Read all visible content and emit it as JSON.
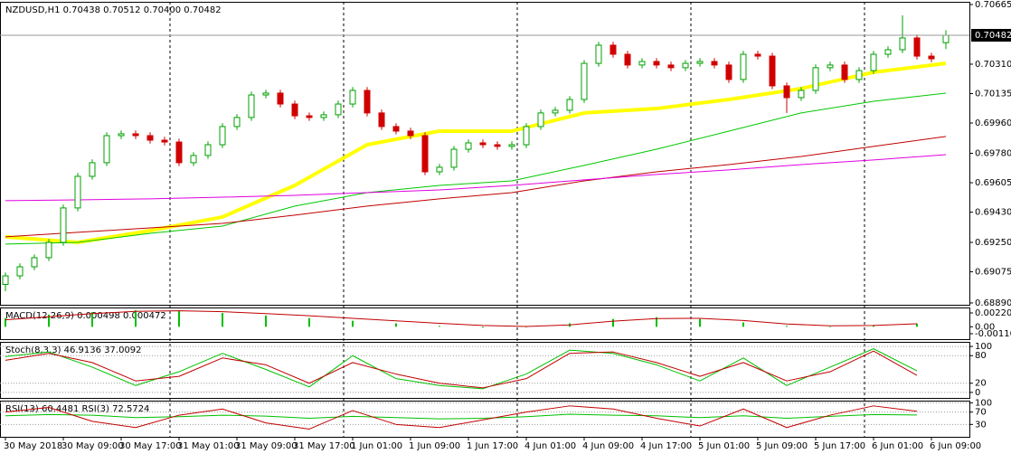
{
  "chart_data": [
    {
      "type": "candlestick",
      "title": "NZDUSD,H1  0.70438 0.70512 0.70400 0.70482",
      "categories": [
        "30 May 2018",
        null,
        null,
        null,
        "30 May 09:00",
        null,
        null,
        null,
        "30 May 17:00",
        null,
        null,
        null,
        "31 May 01:00",
        null,
        null,
        null,
        "31 May 09:00",
        null,
        null,
        null,
        "31 May 17:00",
        null,
        null,
        null,
        "1 Jun 01:00",
        null,
        null,
        null,
        "1 Jun 09:00",
        null,
        null,
        null,
        "1 Jun 17:00",
        null,
        null,
        null,
        "4 Jun 01:00",
        null,
        null,
        null,
        "4 Jun 09:00",
        null,
        null,
        null,
        "4 Jun 17:00",
        null,
        null,
        null,
        "5 Jun 01:00",
        null,
        null,
        null,
        "5 Jun 09:00",
        null,
        null,
        null,
        "5 Jun 17:00",
        null,
        null,
        null,
        "6 Jun 01:00",
        null,
        null,
        null,
        "6 Jun 09:00",
        null
      ],
      "open": [
        0.69,
        0.69051,
        0.69105,
        0.69159,
        0.6925,
        0.69455,
        0.69643,
        0.69724,
        0.69885,
        0.69896,
        0.69885,
        0.69858,
        0.69847,
        0.69724,
        0.69767,
        0.69831,
        0.69939,
        0.69993,
        0.70127,
        0.70138,
        0.70073,
        0.70003,
        0.69993,
        0.70009,
        0.70073,
        0.70154,
        0.7002,
        0.69939,
        0.69912,
        0.69885,
        0.6967,
        0.69697,
        0.69804,
        0.69842,
        0.69831,
        0.69821,
        0.69831,
        0.69939,
        0.7002,
        0.70036,
        0.701,
        0.70315,
        0.70423,
        0.70369,
        0.70305,
        0.70326,
        0.70305,
        0.70289,
        0.70315,
        0.70326,
        0.70305,
        0.70219,
        0.70369,
        0.70358,
        0.70181,
        0.70111,
        0.70154,
        0.70289,
        0.70305,
        0.70219,
        0.70272,
        0.70369,
        0.70396,
        0.70466,
        0.70358,
        0.70438
      ],
      "high": [
        0.69071,
        0.69125,
        0.69179,
        0.6927,
        0.69475,
        0.69663,
        0.69744,
        0.69905,
        0.69916,
        0.69916,
        0.69905,
        0.69878,
        0.69867,
        0.69787,
        0.69851,
        0.69959,
        0.70013,
        0.70147,
        0.70158,
        0.70158,
        0.70093,
        0.70023,
        0.70029,
        0.70093,
        0.70174,
        0.70174,
        0.7004,
        0.69959,
        0.69932,
        0.69905,
        0.69717,
        0.69824,
        0.69862,
        0.69862,
        0.69851,
        0.69851,
        0.69959,
        0.7004,
        0.70056,
        0.7012,
        0.70335,
        0.70443,
        0.70443,
        0.70389,
        0.70346,
        0.70346,
        0.70325,
        0.70335,
        0.70346,
        0.70346,
        0.70325,
        0.70389,
        0.70389,
        0.70378,
        0.70201,
        0.70174,
        0.70309,
        0.70325,
        0.70325,
        0.70292,
        0.70389,
        0.70416,
        0.706,
        0.70486,
        0.70378,
        0.70512
      ],
      "low": [
        0.6896,
        0.69031,
        0.69085,
        0.69139,
        0.6923,
        0.69435,
        0.69623,
        0.69704,
        0.69865,
        0.69865,
        0.69838,
        0.69827,
        0.69704,
        0.69704,
        0.69747,
        0.69811,
        0.69919,
        0.69973,
        0.70107,
        0.70053,
        0.69983,
        0.69973,
        0.69973,
        0.69989,
        0.70053,
        0.7,
        0.69919,
        0.69892,
        0.69865,
        0.6965,
        0.6965,
        0.69677,
        0.69784,
        0.69811,
        0.69801,
        0.69801,
        0.69811,
        0.69919,
        0.7,
        0.70016,
        0.7008,
        0.70295,
        0.70349,
        0.70285,
        0.70285,
        0.70285,
        0.70269,
        0.70269,
        0.70295,
        0.70285,
        0.70199,
        0.70199,
        0.70338,
        0.70161,
        0.7002,
        0.70091,
        0.70134,
        0.70269,
        0.70199,
        0.70199,
        0.70252,
        0.70349,
        0.70376,
        0.70338,
        0.70322,
        0.704
      ],
      "close": [
        0.69051,
        0.69105,
        0.69159,
        0.6925,
        0.69455,
        0.69643,
        0.69724,
        0.69885,
        0.69896,
        0.69885,
        0.69858,
        0.69847,
        0.69724,
        0.69767,
        0.69831,
        0.69939,
        0.69993,
        0.70127,
        0.70138,
        0.70073,
        0.70003,
        0.69993,
        0.70009,
        0.70073,
        0.70154,
        0.7002,
        0.69939,
        0.69912,
        0.69885,
        0.6967,
        0.69697,
        0.69804,
        0.69842,
        0.69831,
        0.69821,
        0.69831,
        0.69939,
        0.7002,
        0.70036,
        0.701,
        0.70315,
        0.70423,
        0.70369,
        0.70305,
        0.70326,
        0.70305,
        0.70289,
        0.70315,
        0.70326,
        0.70305,
        0.70219,
        0.70369,
        0.70358,
        0.70181,
        0.70111,
        0.70154,
        0.70289,
        0.70305,
        0.70219,
        0.70272,
        0.70369,
        0.70396,
        0.70466,
        0.70358,
        0.70342,
        0.70482
      ],
      "up_color": "#00a000",
      "down_color": "#d00000",
      "series": [
        {
          "color": "#ffff00",
          "width": 4,
          "x": [
            0,
            5,
            10,
            15,
            20,
            25,
            30,
            35,
            40,
            45,
            50,
            55,
            60,
            65
          ],
          "values": [
            0.69283,
            0.6925,
            0.6932,
            0.69401,
            0.69589,
            0.69831,
            0.69912,
            0.69912,
            0.7002,
            0.70046,
            0.701,
            0.70165,
            0.70262,
            0.70315
          ]
        },
        {
          "color": "#00c800",
          "width": 1,
          "x": [
            0,
            5,
            10,
            15,
            20,
            25,
            30,
            35,
            40,
            45,
            50,
            55,
            60,
            65
          ],
          "values": [
            0.6924,
            0.6925,
            0.69304,
            0.69347,
            0.69466,
            0.69546,
            0.69589,
            0.69616,
            0.69708,
            0.69804,
            0.69912,
            0.7002,
            0.70089,
            0.70138
          ]
        },
        {
          "color": "#c00000",
          "width": 1,
          "x": [
            0,
            5,
            10,
            15,
            20,
            25,
            30,
            35,
            40,
            45,
            50,
            55,
            60,
            65
          ],
          "values": [
            0.69283,
            0.6931,
            0.69336,
            0.69363,
            0.69412,
            0.69466,
            0.69509,
            0.69546,
            0.69616,
            0.6967,
            0.69713,
            0.69761,
            0.69821,
            0.6988
          ]
        },
        {
          "color": "#e000e0",
          "width": 1,
          "x": [
            0,
            5,
            10,
            15,
            20,
            25,
            30,
            35,
            40,
            45,
            50,
            55,
            60,
            65
          ],
          "values": [
            0.69498,
            0.69503,
            0.69509,
            0.69519,
            0.6953,
            0.69546,
            0.69562,
            0.69589,
            0.69622,
            0.69654,
            0.69681,
            0.69713,
            0.6974,
            0.69772
          ]
        }
      ],
      "ylim": [
        0.68879,
        0.70681
      ],
      "yticks": [
        0.70665,
        {
          "value": 0.7031,
          "label": "0.70310"
        },
        0.70135,
        {
          "value": 0.6996,
          "label": "0.69960"
        },
        {
          "value": 0.6978,
          "label": "0.69780"
        },
        0.69605,
        {
          "value": 0.6943,
          "label": "0.69430"
        },
        {
          "value": 0.6925,
          "label": "0.69250"
        },
        0.69075,
        {
          "value": 0.6889,
          "label": "0.68890"
        }
      ],
      "grid": false
    },
    {
      "type": "macd",
      "title": "MACD(12,26,9) 0.000498 0.000472",
      "series": [
        {
          "style": "histogram",
          "color": "#00c000",
          "x": [
            0,
            3,
            6,
            9,
            12,
            15,
            18,
            21,
            24,
            27,
            30,
            33,
            36,
            39,
            42,
            45,
            48,
            51,
            54,
            57,
            60,
            63
          ],
          "values": [
            0.00138,
            0.00193,
            0.00234,
            0.00262,
            0.00248,
            0.0022,
            0.00179,
            0.00138,
            0.00096,
            0.00055,
            0.00014,
            -0.00014,
            0,
            0.00055,
            0.00124,
            0.00152,
            0.00124,
            0.00069,
            0.00014,
            0,
            0.00028,
            0.000498
          ]
        },
        {
          "style": "line",
          "color": "#c00000",
          "x": [
            0,
            3,
            6,
            9,
            12,
            15,
            18,
            21,
            24,
            27,
            30,
            33,
            36,
            39,
            42,
            45,
            48,
            51,
            54,
            57,
            60,
            63
          ],
          "values": [
            0.0011,
            0.0016,
            0.0021,
            0.00245,
            0.00255,
            0.0024,
            0.0021,
            0.00175,
            0.00135,
            0.00095,
            0.00055,
            0.0002,
            5e-05,
            0.0003,
            0.0009,
            0.0013,
            0.00135,
            0.001,
            0.00045,
            0.00015,
            0.0002,
            0.000472
          ]
        }
      ],
      "ylim": [
        -0.00197,
        0.00307
      ],
      "yticks": [
        0.002204,
        {
          "value": 0,
          "label": "0.00"
        },
        -0.001103
      ],
      "grid": false
    },
    {
      "type": "line",
      "title": "Stoch(8,3,3) 46.9136 37.0092",
      "series": [
        {
          "color": "#00c000",
          "x": [
            0,
            3,
            6,
            9,
            12,
            15,
            18,
            21,
            24,
            27,
            30,
            33,
            36,
            39,
            42,
            45,
            48,
            51,
            54,
            57,
            60,
            63
          ],
          "values": [
            78,
            88,
            55,
            15,
            45,
            85,
            50,
            12,
            80,
            30,
            15,
            8,
            40,
            92,
            85,
            60,
            25,
            75,
            15,
            55,
            95,
            46.9136
          ]
        },
        {
          "color": "#c00000",
          "x": [
            0,
            3,
            6,
            9,
            12,
            15,
            18,
            21,
            24,
            27,
            30,
            33,
            36,
            39,
            42,
            45,
            48,
            51,
            54,
            57,
            60,
            63
          ],
          "values": [
            70,
            85,
            65,
            25,
            35,
            75,
            60,
            20,
            65,
            40,
            20,
            10,
            30,
            85,
            88,
            65,
            35,
            65,
            25,
            45,
            90,
            37.0092
          ]
        }
      ],
      "ylim": [
        -12,
        110
      ],
      "yticks": [
        100,
        80,
        20,
        0
      ],
      "grid": true
    },
    {
      "type": "line",
      "title": "RSI(13) 60.4481  RSI(3) 72.5724",
      "series": [
        {
          "color": "#00c000",
          "x": [
            0,
            3,
            6,
            9,
            12,
            15,
            18,
            21,
            24,
            27,
            30,
            33,
            36,
            39,
            42,
            45,
            48,
            51,
            54,
            57,
            60,
            63
          ],
          "values": [
            58,
            62,
            60,
            52,
            55,
            60,
            57,
            50,
            56,
            52,
            48,
            50,
            55,
            63,
            60,
            58,
            52,
            58,
            50,
            56,
            62,
            60.4481
          ]
        },
        {
          "color": "#c00000",
          "x": [
            0,
            3,
            6,
            9,
            12,
            15,
            18,
            21,
            24,
            27,
            30,
            33,
            36,
            39,
            42,
            45,
            48,
            51,
            54,
            57,
            60,
            63
          ],
          "values": [
            70,
            85,
            40,
            20,
            60,
            80,
            35,
            15,
            75,
            30,
            20,
            45,
            70,
            90,
            80,
            50,
            25,
            80,
            20,
            60,
            90,
            72.5724
          ]
        }
      ],
      "ylim": [
        -10,
        107
      ],
      "yticks": [
        100,
        70,
        30
      ],
      "grid": true
    }
  ]
}
